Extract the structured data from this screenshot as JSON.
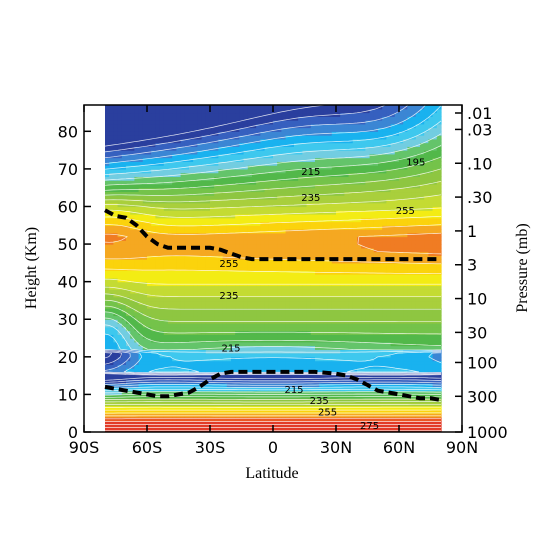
{
  "chart_data": {
    "type": "contour",
    "xlabel": "Latitude",
    "ylabel": "Height (Km)",
    "y2label": "Pressure (mb)",
    "xlim": [
      -90,
      90
    ],
    "ylim": [
      0,
      87
    ],
    "x_ticks": [
      {
        "value": -90,
        "label": "90S"
      },
      {
        "value": -60,
        "label": "60S"
      },
      {
        "value": -30,
        "label": "30S"
      },
      {
        "value": 0,
        "label": "0"
      },
      {
        "value": 30,
        "label": "30N"
      },
      {
        "value": 60,
        "label": "60N"
      },
      {
        "value": 90,
        "label": "90N"
      }
    ],
    "y_ticks": [
      0,
      10,
      20,
      30,
      40,
      50,
      60,
      70,
      80
    ],
    "y2_ticks": [
      {
        "height": 0,
        "label": "1000"
      },
      {
        "height": 9.5,
        "label": "300"
      },
      {
        "height": 18.5,
        "label": "100"
      },
      {
        "height": 26.5,
        "label": "30"
      },
      {
        "height": 35.5,
        "label": "10"
      },
      {
        "height": 44.5,
        "label": "3"
      },
      {
        "height": 53.5,
        "label": "1"
      },
      {
        "height": 62.5,
        "label": ".30"
      },
      {
        "height": 71.5,
        "label": ".10"
      },
      {
        "height": 80.5,
        "label": ".03"
      },
      {
        "height": 89,
        "label": ".01"
      }
    ],
    "data_lat_range": [
      -80,
      80
    ],
    "contour_levels": [
      185,
      190,
      195,
      200,
      205,
      210,
      215,
      220,
      225,
      230,
      235,
      240,
      245,
      250,
      255,
      260,
      265,
      270,
      275,
      280,
      285,
      290,
      295
    ],
    "color_scale": [
      "#2a3f9e",
      "#3660bf",
      "#3b86d4",
      "#19b2ef",
      "#3ec8ee",
      "#72cde1",
      "#64c46a",
      "#52b84a",
      "#74c34a",
      "#8ec641",
      "#a9cf3c",
      "#c4db33",
      "#f3ec14",
      "#fbd30c",
      "#f5a821",
      "#f07c23",
      "#ea5725",
      "#e23b28"
    ],
    "contour_labels": [
      {
        "lat": 18,
        "height": 69.5,
        "text": "215"
      },
      {
        "lat": 18,
        "height": 62.5,
        "text": "235"
      },
      {
        "lat": 68,
        "height": 72,
        "text": "195"
      },
      {
        "lat": 63,
        "height": 59,
        "text": "255"
      },
      {
        "lat": -21,
        "height": 45,
        "text": "255"
      },
      {
        "lat": -21,
        "height": 36.5,
        "text": "235"
      },
      {
        "lat": -20,
        "height": 22.5,
        "text": "215"
      },
      {
        "lat": 10,
        "height": 11.5,
        "text": "215"
      },
      {
        "lat": 22,
        "height": 8.5,
        "text": "235"
      },
      {
        "lat": 26,
        "height": 5.5,
        "text": "255"
      },
      {
        "lat": 46,
        "height": 1.8,
        "text": "275"
      }
    ],
    "series": [
      {
        "role": "stratopause",
        "style": "dashed",
        "x": [
          -80,
          -75,
          -70,
          -65,
          -60,
          -55,
          -50,
          -45,
          -40,
          -35,
          -30,
          -25,
          -20,
          -15,
          -10,
          -5,
          0,
          10,
          20,
          30,
          40,
          50,
          60,
          70,
          80
        ],
        "y": [
          59,
          57.5,
          57,
          55,
          52,
          50,
          49,
          49,
          49,
          49,
          49,
          48.5,
          47.5,
          46.5,
          46,
          46,
          46,
          46,
          46,
          46,
          46,
          46,
          46,
          46,
          46
        ]
      },
      {
        "role": "tropopause",
        "style": "dashed",
        "x": [
          -80,
          -75,
          -70,
          -65,
          -60,
          -55,
          -50,
          -45,
          -40,
          -35,
          -30,
          -25,
          -20,
          -15,
          -10,
          -5,
          0,
          10,
          20,
          30,
          35,
          40,
          45,
          50,
          55,
          60,
          65,
          70,
          75,
          80
        ],
        "y": [
          12,
          11.5,
          11,
          10.5,
          10,
          9.5,
          9.5,
          10,
          10.5,
          12,
          14,
          15.5,
          16,
          16,
          16,
          16,
          16,
          16,
          16,
          15.5,
          15,
          14,
          12.5,
          11,
          10.5,
          10,
          9.5,
          9,
          9,
          8.5
        ]
      }
    ]
  }
}
